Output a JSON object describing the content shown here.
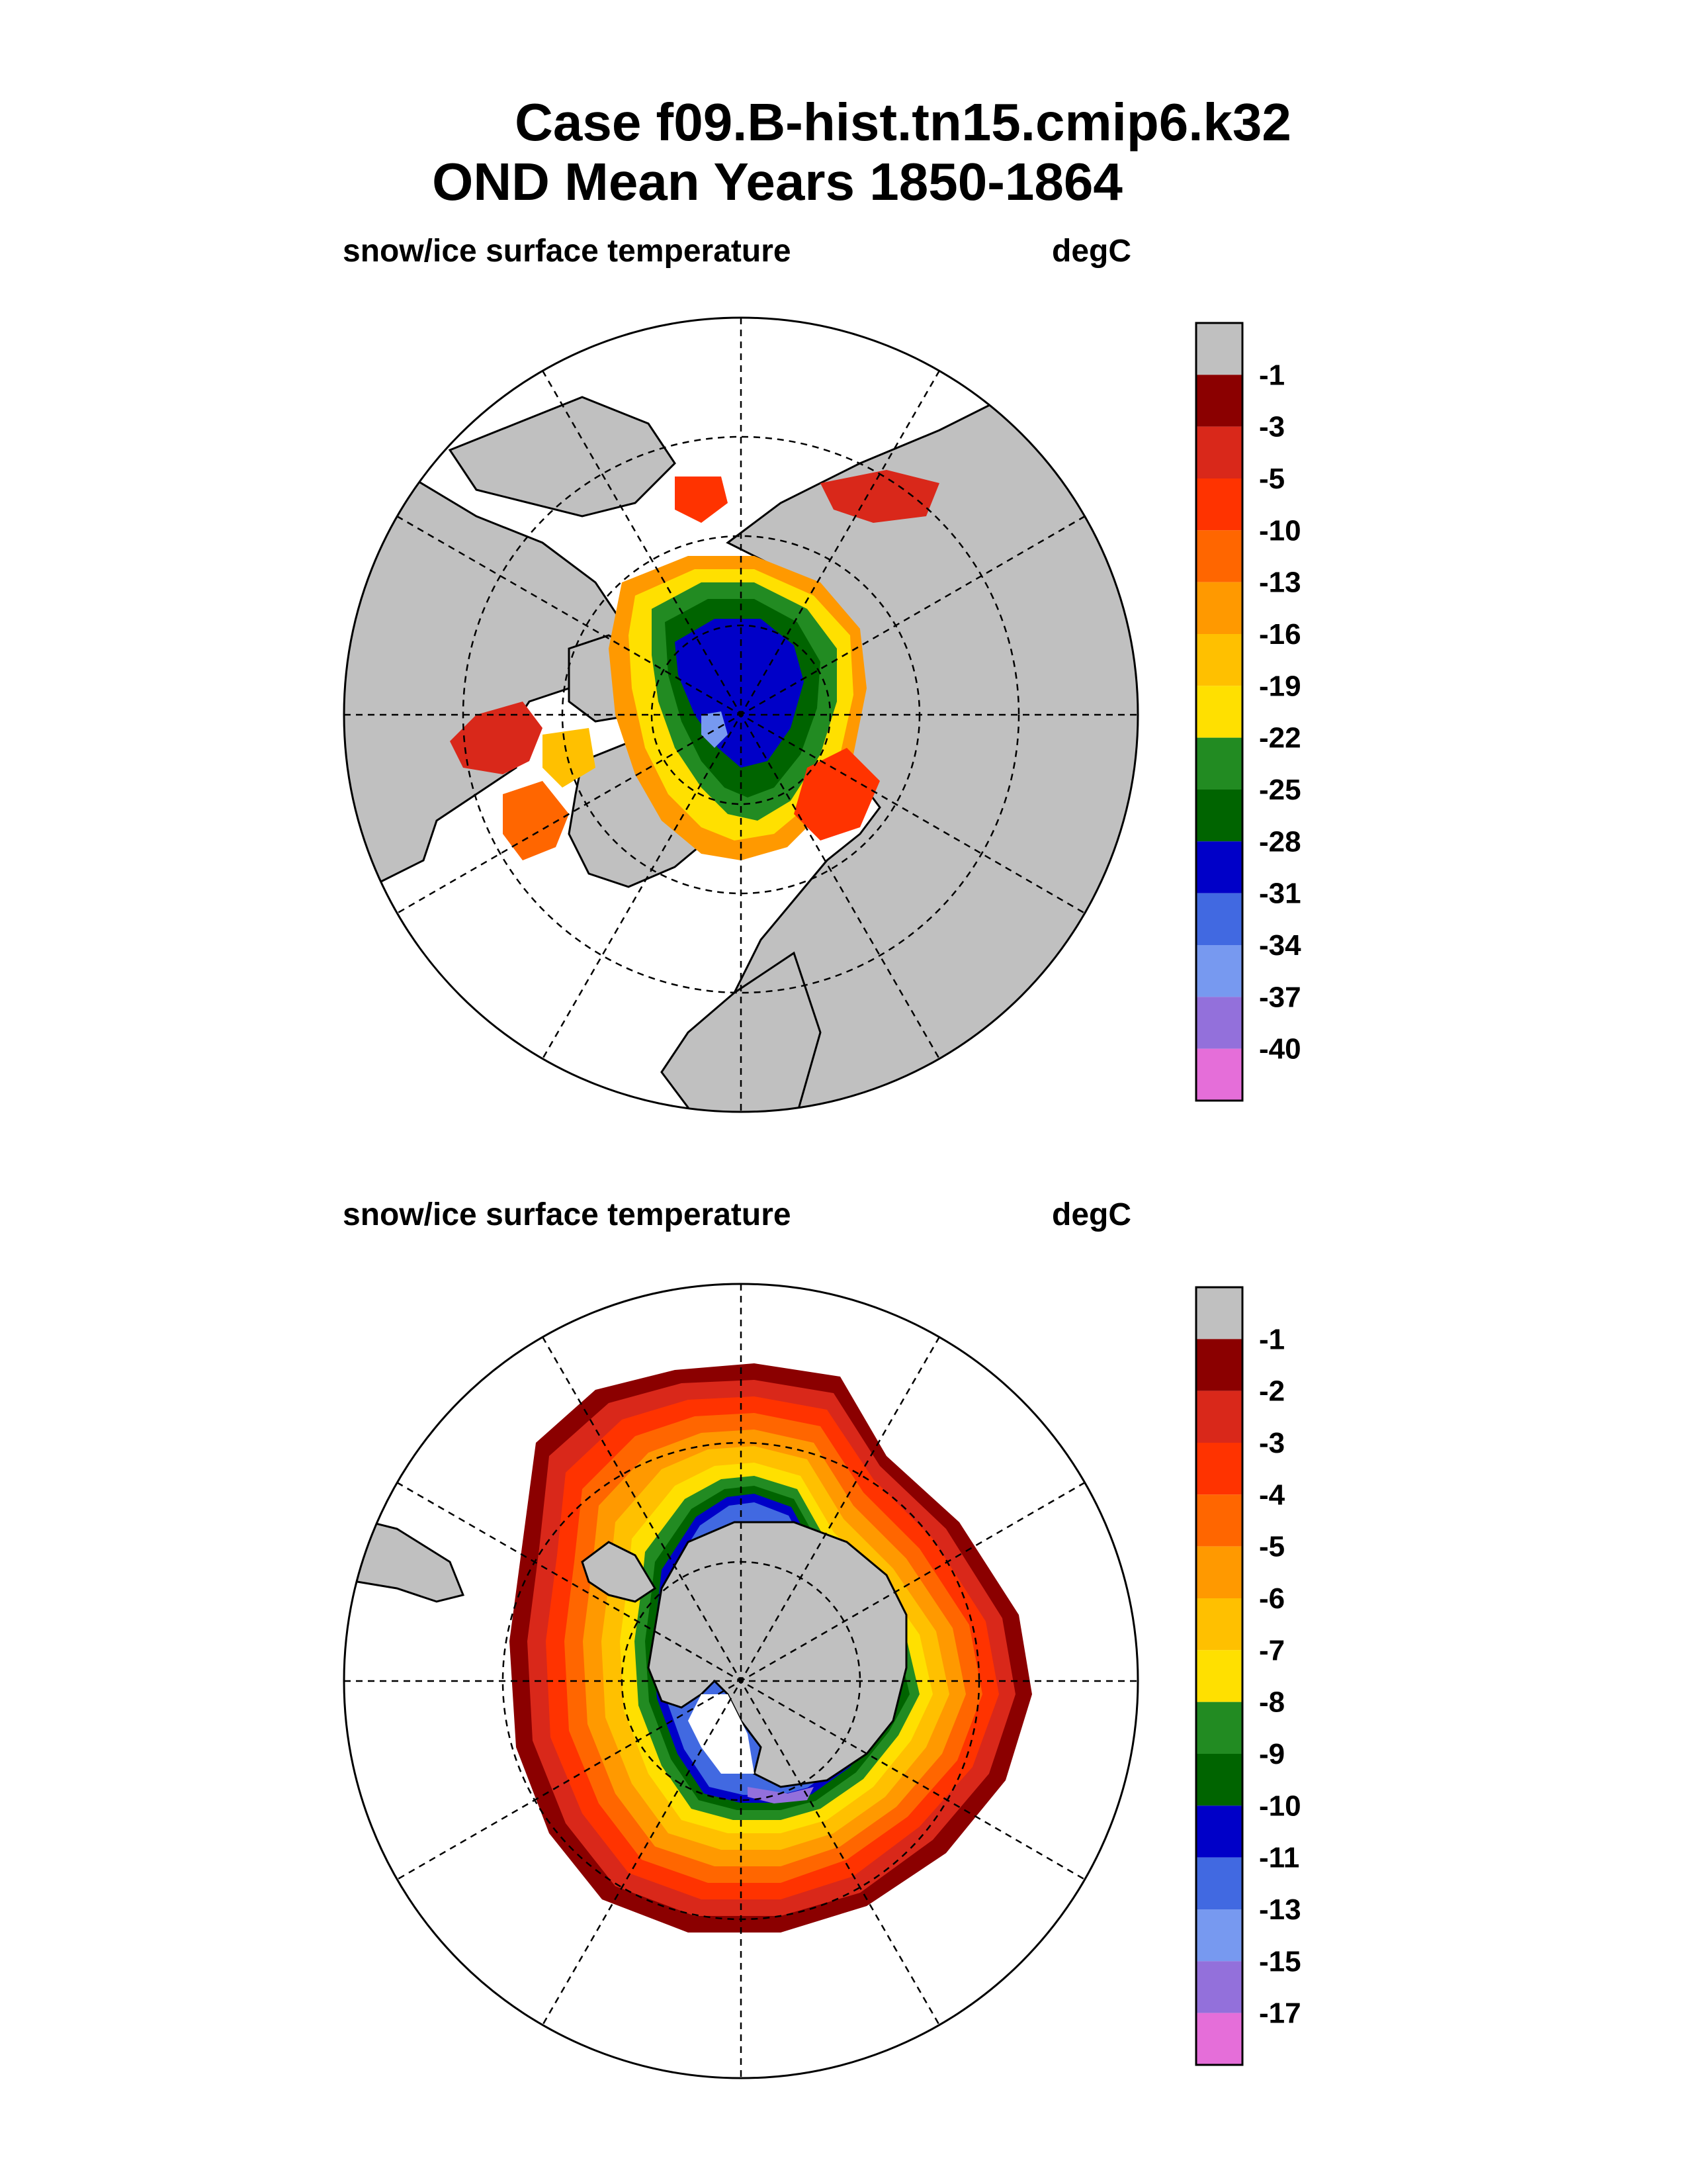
{
  "title": {
    "line1": "Case f09.B-hist.tn15.cmip6.k32",
    "line2": "OND Mean   Years 1850-1864"
  },
  "panels": [
    {
      "name": "north",
      "variable_label": "snow/ice surface temperature",
      "units_label": "degC",
      "colorbar": {
        "colors": [
          "#c0c0c0",
          "#8b0000",
          "#d9281a",
          "#ff3300",
          "#ff6600",
          "#ff9900",
          "#ffc000",
          "#ffe000",
          "#228b22",
          "#006400",
          "#0000c8",
          "#4169e1",
          "#7799f0",
          "#9370db",
          "#e56ed9"
        ],
        "labels": [
          "-1",
          "-3",
          "-5",
          "-10",
          "-13",
          "-16",
          "-19",
          "-22",
          "-25",
          "-28",
          "-31",
          "-34",
          "-37",
          "-40"
        ]
      }
    },
    {
      "name": "south",
      "variable_label": "snow/ice surface temperature",
      "units_label": "degC",
      "colorbar": {
        "colors": [
          "#c0c0c0",
          "#8b0000",
          "#d9281a",
          "#ff3300",
          "#ff6600",
          "#ff9900",
          "#ffc000",
          "#ffe000",
          "#228b22",
          "#006400",
          "#0000c8",
          "#4169e1",
          "#7799f0",
          "#9370db",
          "#e56ed9"
        ],
        "labels": [
          "-1",
          "-2",
          "-3",
          "-4",
          "-5",
          "-6",
          "-7",
          "-8",
          "-9",
          "-10",
          "-11",
          "-13",
          "-15",
          "-17"
        ]
      }
    }
  ]
}
